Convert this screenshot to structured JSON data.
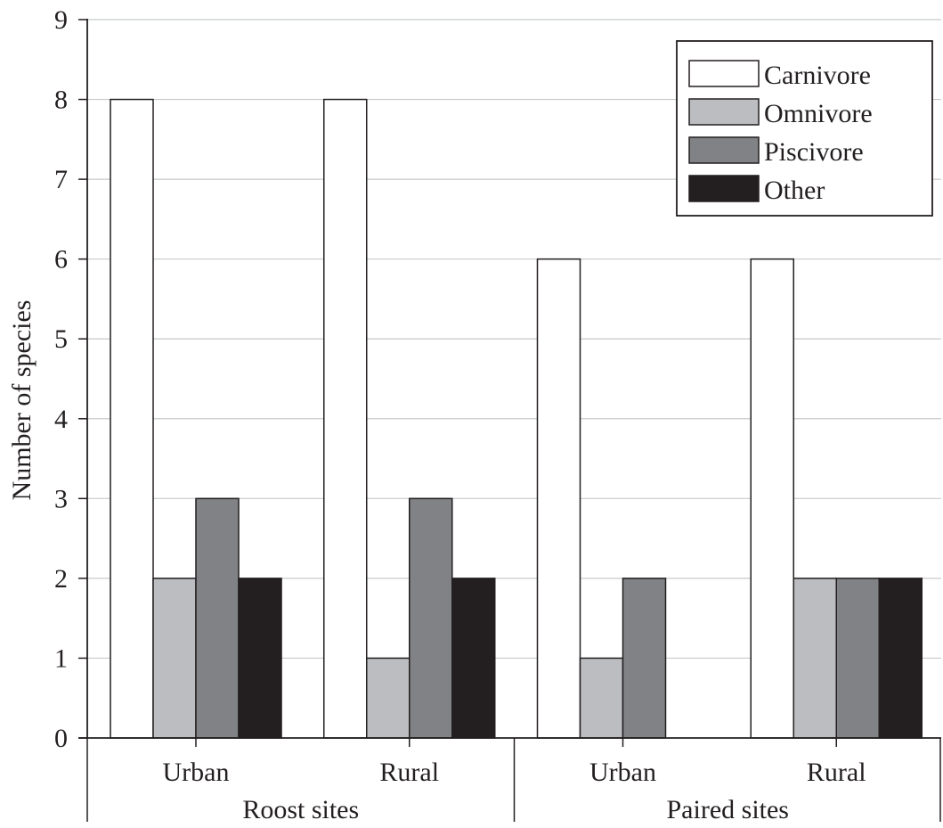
{
  "chart_data": {
    "type": "bar",
    "title": "",
    "xlabel": "",
    "ylabel": "Number of species",
    "ylim": [
      0,
      9
    ],
    "yticks": [
      0,
      1,
      2,
      3,
      4,
      5,
      6,
      7,
      8,
      9
    ],
    "grid": "horizontal",
    "legend_position": "top-right",
    "groups": [
      {
        "label": "Roost sites",
        "categories": [
          "Urban",
          "Rural"
        ]
      },
      {
        "label": "Paired sites",
        "categories": [
          "Urban",
          "Rural"
        ]
      }
    ],
    "categories": [
      "Urban",
      "Rural",
      "Urban",
      "Rural"
    ],
    "series": [
      {
        "name": "Carnivore",
        "color": "#ffffff",
        "values": [
          8,
          8,
          6,
          6
        ]
      },
      {
        "name": "Omnivore",
        "color": "#bcbdc0",
        "values": [
          2,
          1,
          1,
          2
        ]
      },
      {
        "name": "Piscivore",
        "color": "#808285",
        "values": [
          3,
          3,
          2,
          2
        ]
      },
      {
        "name": "Other",
        "color": "#231f20",
        "values": [
          2,
          2,
          0,
          2
        ]
      }
    ]
  }
}
